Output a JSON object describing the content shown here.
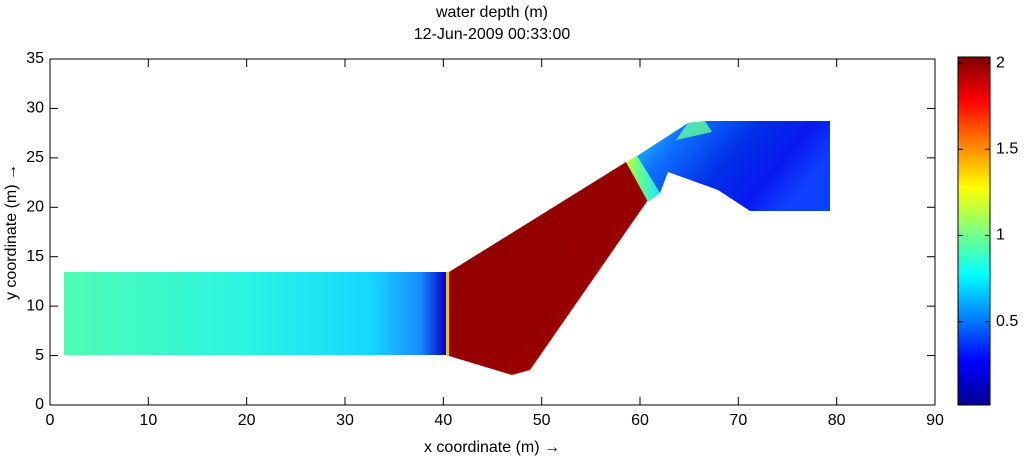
{
  "chart_data": {
    "type": "field",
    "title": "water depth (m)",
    "subtitle": "12-Jun-2009 00:33:00",
    "x_label": "x coordinate (m) →",
    "y_label": "y coordinate (m) →",
    "xlim": [
      0,
      90
    ],
    "xticks": [
      0,
      10,
      20,
      30,
      40,
      50,
      60,
      70,
      80,
      90
    ],
    "ylim": [
      0,
      35
    ],
    "yticks": [
      0,
      5,
      10,
      15,
      20,
      25,
      30,
      35
    ],
    "colormap": "jet",
    "colorbar": {
      "clim": [
        0.017,
        2.035
      ],
      "ticks": [
        0.5,
        1,
        1.5,
        2
      ]
    }
  }
}
